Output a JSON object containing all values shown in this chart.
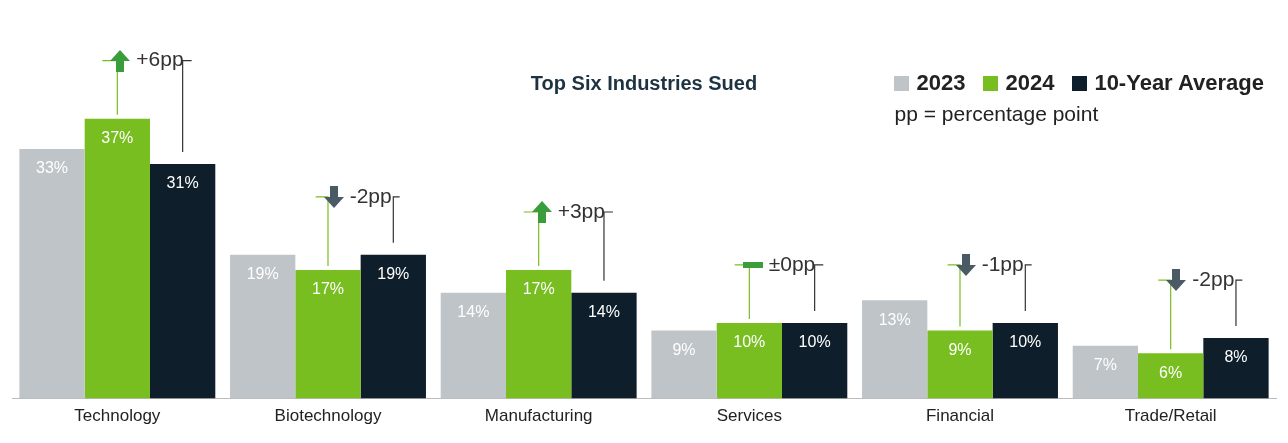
{
  "chart_data": {
    "type": "bar",
    "title": "Top Six Industries Sued",
    "categories": [
      "Technology",
      "Biotechnology",
      "Manufacturing",
      "Services",
      "Financial",
      "Trade/Retail"
    ],
    "series": [
      {
        "name": "2023",
        "color": "#bfc4c8",
        "values": [
          33,
          19,
          14,
          9,
          13,
          7
        ],
        "value_labels": [
          "33%",
          "19%",
          "14%",
          "9%",
          "13%",
          "7%"
        ]
      },
      {
        "name": "2024",
        "color": "#78be20",
        "values": [
          37,
          17,
          17,
          10,
          9,
          6
        ],
        "value_labels": [
          "37%",
          "17%",
          "17%",
          "10%",
          "9%",
          "6%"
        ]
      },
      {
        "name": "10-Year Average",
        "color": "#0e1e2a",
        "values": [
          31,
          19,
          14,
          10,
          10,
          8
        ],
        "value_labels": [
          "31%",
          "19%",
          "14%",
          "10%",
          "10%",
          "8%"
        ]
      }
    ],
    "legend": "top right",
    "grid": false,
    "annotations": [
      "+6pp",
      "-2pp",
      "+3pp",
      "±0pp",
      "-1pp",
      "-2pp",
      "pp = percentage point"
    ]
  }
}
